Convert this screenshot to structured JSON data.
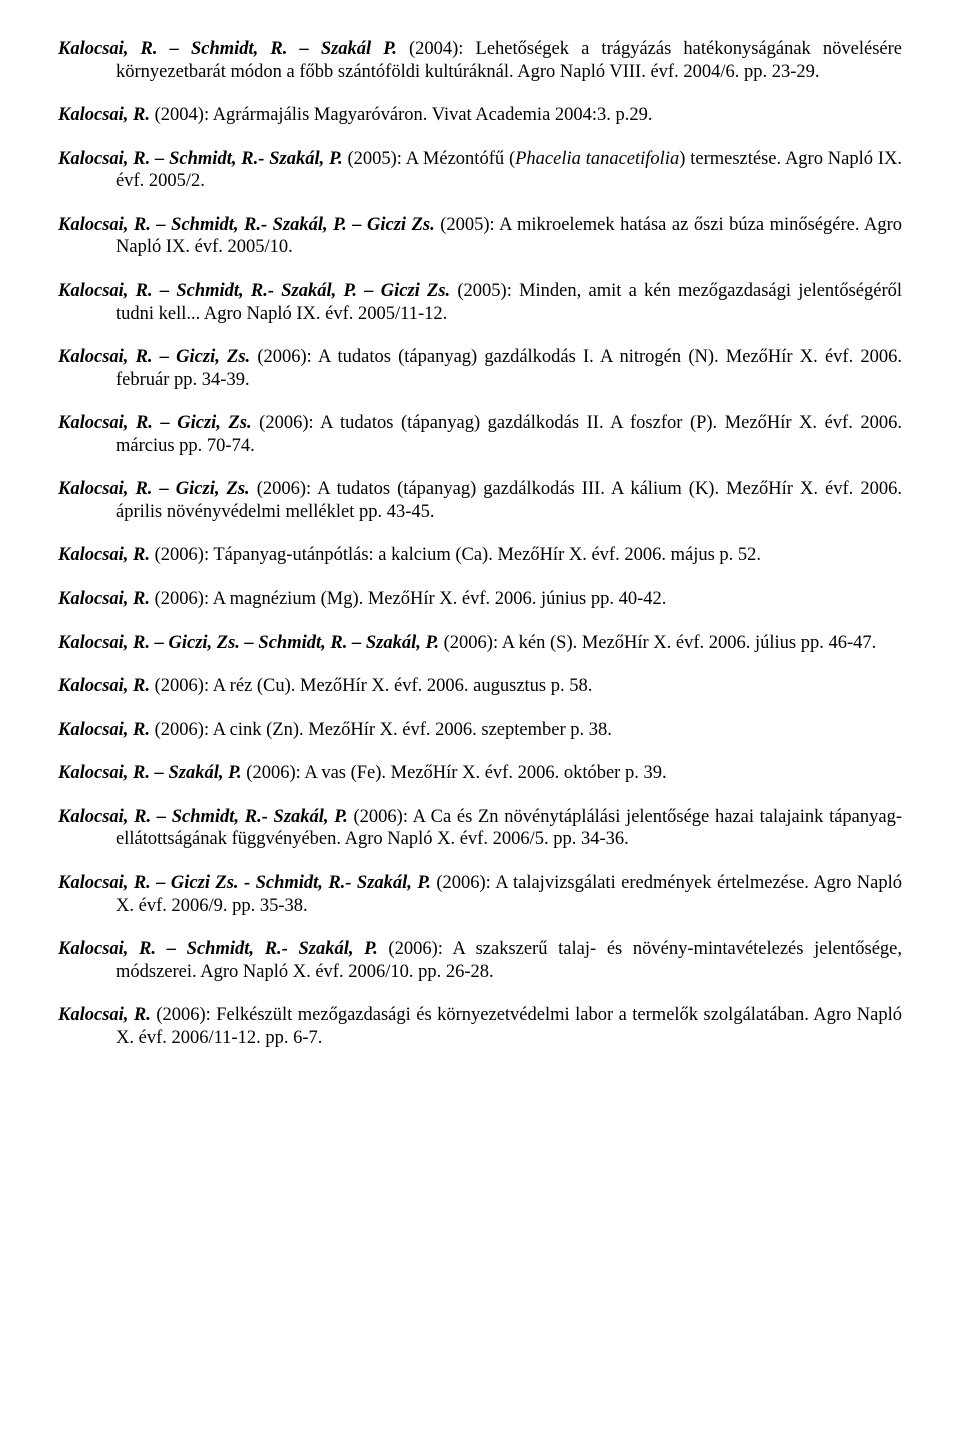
{
  "entries": [
    {
      "authors": "Kalocsai, R. – Schmidt, R. – Szakál P.",
      "rest": " (2004): Lehetőségek a trágyázás hatékonyságának növelésére környezetbarát módon a főbb szántóföldi kultúráknál. Agro Napló VIII. évf. 2004/6. pp. 23-29."
    },
    {
      "authors": "Kalocsai, R.",
      "rest": " (2004): Agrármajális Magyaróváron. Vivat Academia 2004:3. p.29."
    },
    {
      "authors": "Kalocsai, R. – Schmidt, R.- Szakál, P.",
      "rest_prefix": " (2005): A Mézontófű (",
      "rest_italic": "Phacelia tanacetifolia",
      "rest_suffix": ") termesztése. Agro Napló IX. évf. 2005/2."
    },
    {
      "authors": "Kalocsai, R. – Schmidt, R.- Szakál, P. – Giczi Zs.",
      "rest": " (2005): A mikroelemek hatása az őszi búza minőségére. Agro Napló IX. évf. 2005/10."
    },
    {
      "authors": "Kalocsai, R. – Schmidt, R.- Szakál, P. – Giczi Zs.",
      "rest": " (2005): Minden, amit a kén mezőgazdasági jelentőségéről tudni kell... Agro Napló IX. évf. 2005/11-12."
    },
    {
      "authors": "Kalocsai, R. – Giczi, Zs.",
      "rest": " (2006): A tudatos (tápanyag) gazdálkodás I. A nitrogén (N). MezőHír X. évf. 2006. február pp. 34-39."
    },
    {
      "authors": "Kalocsai, R. – Giczi, Zs.",
      "rest": " (2006): A tudatos (tápanyag) gazdálkodás II. A foszfor (P). MezőHír X. évf. 2006. március pp. 70-74."
    },
    {
      "authors": "Kalocsai, R. – Giczi, Zs.",
      "rest": " (2006): A tudatos (tápanyag) gazdálkodás III. A kálium (K). MezőHír X. évf. 2006. április növényvédelmi melléklet pp. 43-45."
    },
    {
      "authors": "Kalocsai, R.",
      "rest": " (2006): Tápanyag-utánpótlás: a kalcium (Ca). MezőHír X. évf. 2006. május p. 52."
    },
    {
      "authors": "Kalocsai, R.",
      "rest": " (2006): A magnézium (Mg). MezőHír X. évf. 2006. június pp. 40-42."
    },
    {
      "authors": "Kalocsai, R. – Giczi, Zs. – Schmidt, R. – Szakál, P.",
      "rest": " (2006): A kén (S). MezőHír X. évf. 2006. július pp. 46-47."
    },
    {
      "authors": "Kalocsai, R.",
      "rest": " (2006): A réz (Cu). MezőHír X. évf. 2006. augusztus p. 58."
    },
    {
      "authors": "Kalocsai, R.",
      "rest": " (2006): A cink (Zn). MezőHír X. évf. 2006. szeptember p. 38."
    },
    {
      "authors": "Kalocsai, R. – Szakál, P.",
      "rest": " (2006): A vas (Fe). MezőHír X. évf. 2006. október p. 39."
    },
    {
      "authors": "Kalocsai, R. – Schmidt, R.- Szakál, P.",
      "rest": " (2006): A Ca és Zn növénytáplálási jelentősége hazai talajaink tápanyag-ellátottságának függvényében. Agro Napló X. évf. 2006/5. pp. 34-36."
    },
    {
      "authors": "Kalocsai, R. – Giczi Zs. - Schmidt, R.- Szakál, P.",
      "rest": " (2006): A talajvizsgálati eredmények értelmezése. Agro Napló X. évf. 2006/9. pp. 35-38."
    },
    {
      "authors": "Kalocsai, R. – Schmidt, R.- Szakál, P.",
      "rest": " (2006): A szakszerű talaj- és növény-mintavételezés jelentősége, módszerei. Agro Napló X. évf. 2006/10. pp. 26-28."
    },
    {
      "authors": "Kalocsai, R.",
      "rest": " (2006): Felkészült mezőgazdasági és környezetvédelmi labor a termelők szolgálatában. Agro Napló X. évf. 2006/11-12. pp. 6-7."
    }
  ]
}
